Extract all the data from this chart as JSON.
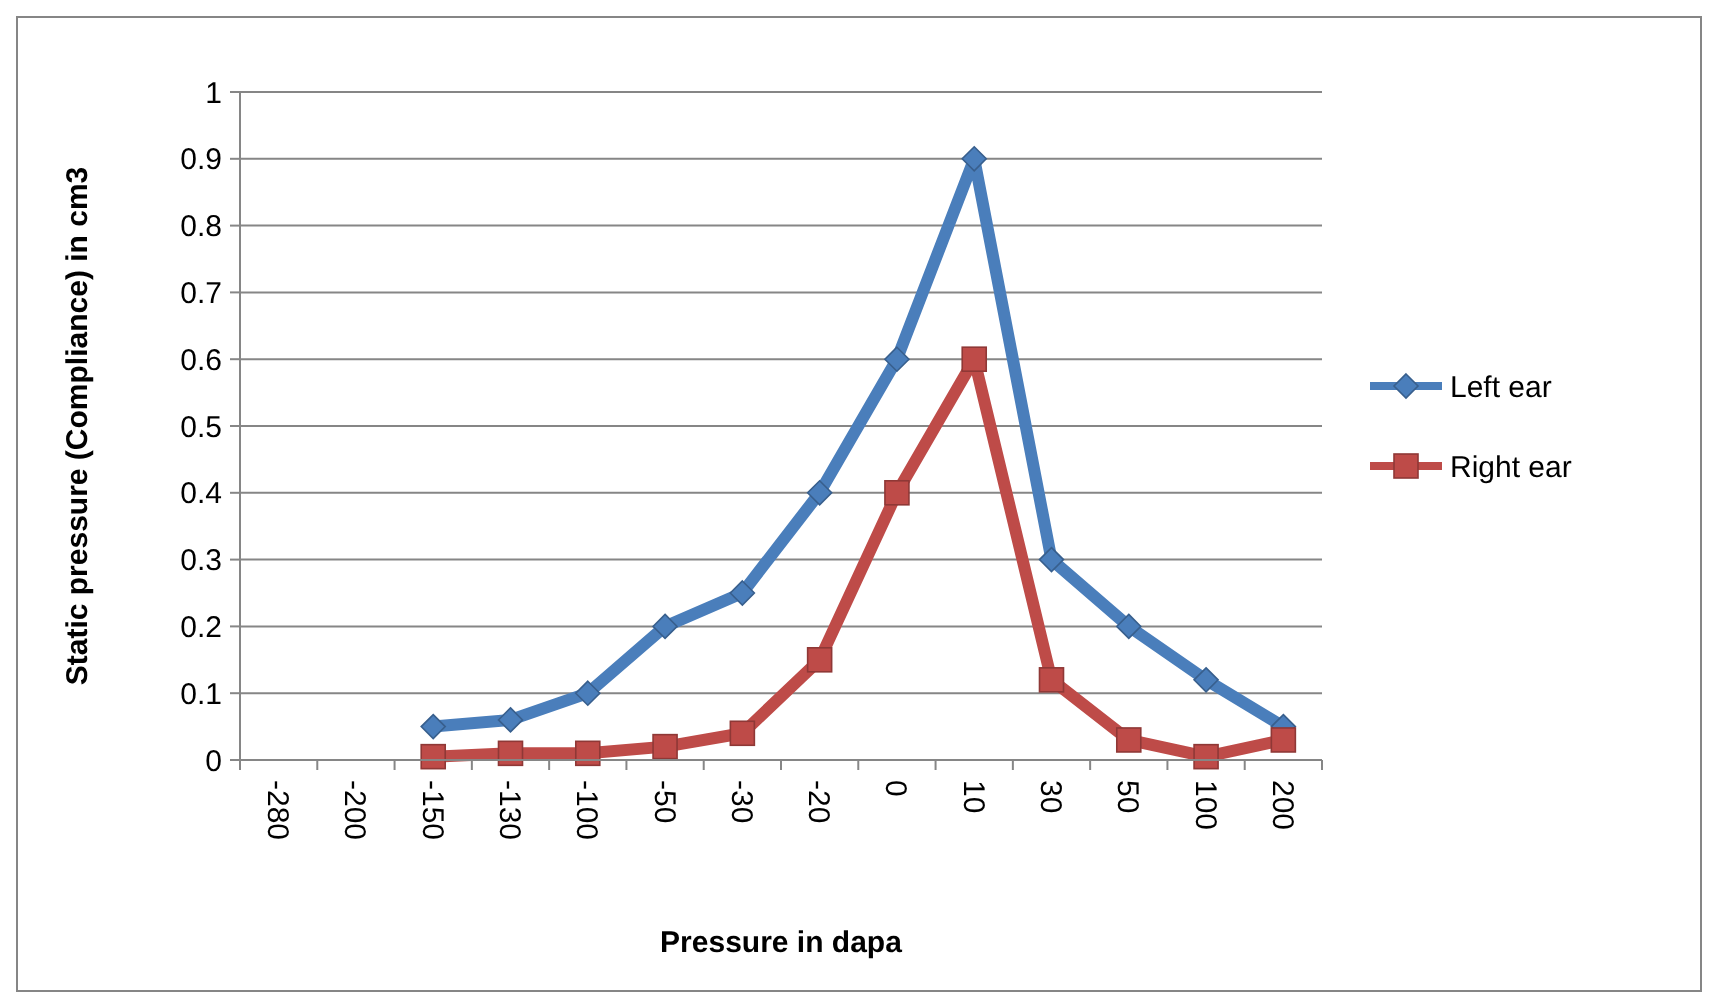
{
  "chart_data": {
    "type": "line",
    "xlabel": "Pressure in dapa",
    "ylabel": "Static pressure (Compliance) in cm3",
    "categories": [
      "-280",
      "-200",
      "-150",
      "-130",
      "-100",
      "-50",
      "-30",
      "-20",
      "0",
      "10",
      "30",
      "50",
      "100",
      "200"
    ],
    "series": [
      {
        "name": "Left ear",
        "color": "#4a7ebb",
        "marker": "diamond",
        "values": [
          null,
          null,
          0.05,
          0.06,
          0.1,
          0.2,
          0.25,
          0.4,
          0.6,
          0.9,
          0.3,
          0.2,
          0.12,
          0.05
        ]
      },
      {
        "name": "Right ear",
        "color": "#be4b48",
        "marker": "square",
        "values": [
          null,
          null,
          0.005,
          0.01,
          0.01,
          0.02,
          0.04,
          0.15,
          0.4,
          0.6,
          0.12,
          0.03,
          0.005,
          0.03
        ]
      }
    ],
    "ylim": [
      0,
      1
    ],
    "yticks": [
      0,
      0.1,
      0.2,
      0.3,
      0.4,
      0.5,
      0.6,
      0.7,
      0.8,
      0.9,
      1
    ],
    "grid": "y",
    "legend": "right"
  }
}
